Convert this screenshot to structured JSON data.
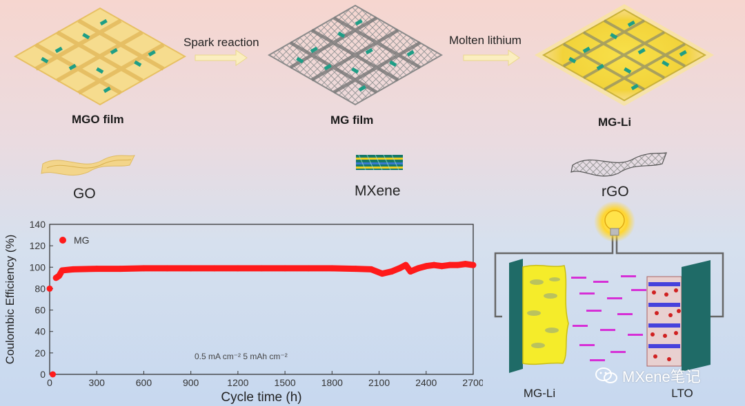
{
  "process": {
    "films": [
      {
        "label": "MGO film"
      },
      {
        "label": "MG film"
      },
      {
        "label": "MG-Li"
      }
    ],
    "steps": [
      {
        "label": "Spark reaction"
      },
      {
        "label": "Molten lithium"
      }
    ],
    "materials": [
      {
        "label": "GO"
      },
      {
        "label": "MXene"
      },
      {
        "label": "rGO"
      }
    ]
  },
  "colors": {
    "go_film": "#f2d27a",
    "mxene": "#1e9e86",
    "graphene": "#8a8a8a",
    "lithium": "#f5e33a",
    "series": "#ff1a1a",
    "current_collector": "#1f6b67",
    "ions": "#d62fd6"
  },
  "chart_data": {
    "type": "scatter",
    "xlabel": "Cycle time (h)",
    "ylabel": "Coulombic Efficiency (%)",
    "xlim": [
      0,
      2700
    ],
    "ylim": [
      0,
      140
    ],
    "xticks": [
      "0",
      "300",
      "600",
      "900",
      "1200",
      "1500",
      "1800",
      "2100",
      "2400",
      "2700"
    ],
    "yticks": [
      "0",
      "20",
      "40",
      "60",
      "80",
      "100",
      "120",
      "140"
    ],
    "legend": "top-left",
    "annotation": "0.5 mA cm⁻² 5 mAh cm⁻²",
    "series": [
      {
        "name": "MG",
        "x": [
          0,
          20,
          40,
          60,
          80,
          150,
          300,
          450,
          600,
          750,
          900,
          1050,
          1200,
          1350,
          1500,
          1650,
          1800,
          1950,
          2050,
          2120,
          2180,
          2230,
          2270,
          2300,
          2350,
          2400,
          2450,
          2500,
          2550,
          2600,
          2650,
          2700
        ],
        "y": [
          80,
          0,
          90,
          92,
          97,
          98,
          98.5,
          98.5,
          99,
          99,
          99,
          99,
          99,
          99,
          99,
          99,
          99,
          98.5,
          98,
          94,
          96,
          99,
          102,
          96,
          99,
          101,
          102,
          101,
          102,
          102,
          103,
          102
        ]
      }
    ]
  },
  "battery": {
    "left_label": "MG-Li",
    "right_label": "LTO"
  },
  "watermark": {
    "text": "MXene笔记",
    "icon": "wechat-icon"
  }
}
